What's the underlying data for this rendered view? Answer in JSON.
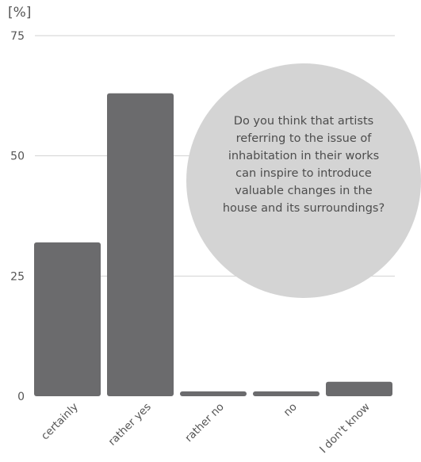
{
  "chart_data": {
    "type": "bar",
    "unit_label": "[%]",
    "categories": [
      "certainly",
      "rather yes",
      "rather no",
      "no",
      "I don't know"
    ],
    "values": [
      32,
      63,
      1,
      1,
      3
    ],
    "ylim": [
      0,
      75
    ],
    "yticks": [
      0,
      25,
      50,
      75
    ],
    "grid": true,
    "bar_color": "#6b6b6d",
    "annotation": "Do you think that artists referring to the issue of inhabitation in their works can inspire to introduce valuable changes in the house and its surroundings?"
  }
}
